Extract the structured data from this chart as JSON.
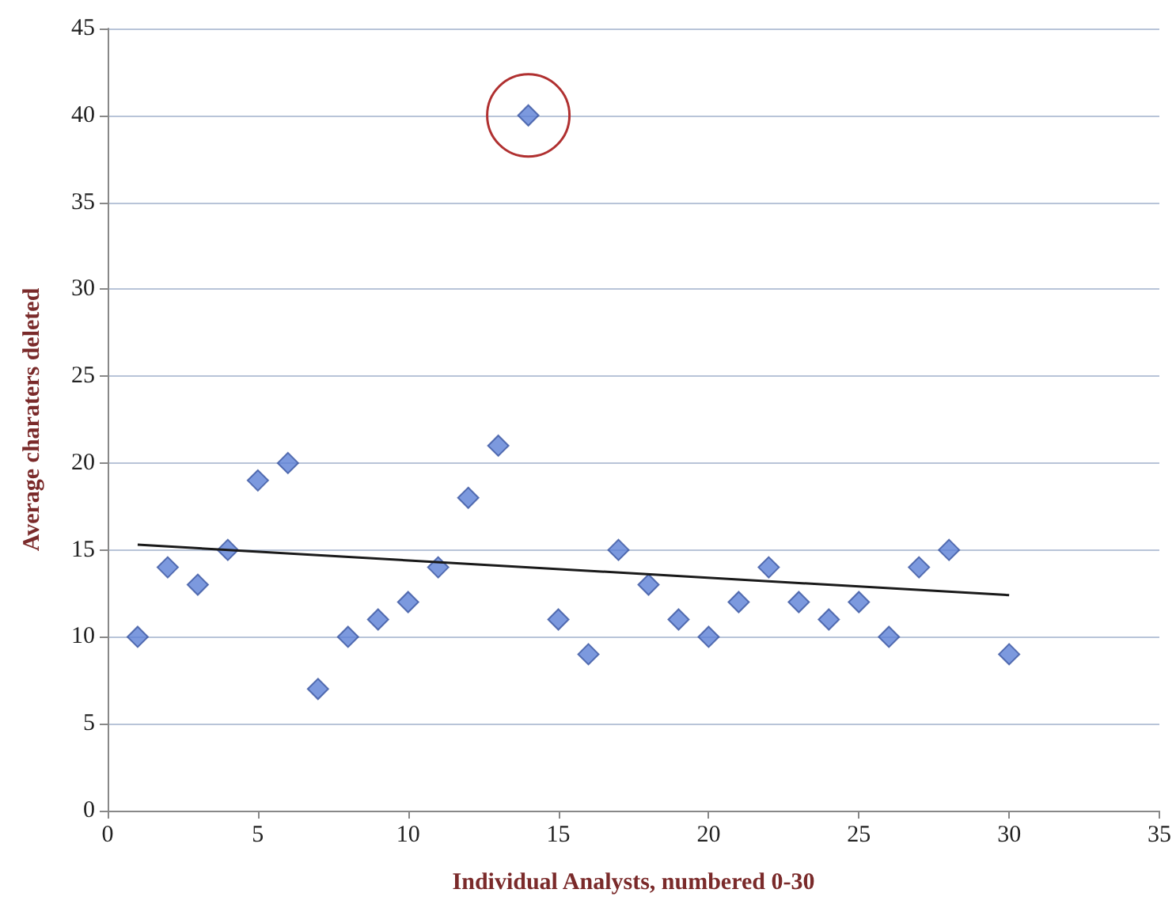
{
  "chart_data": {
    "type": "scatter",
    "xlabel": "Individual Analysts, numbered 0-30",
    "ylabel": "Average charaters deleted",
    "xlim": [
      0,
      35
    ],
    "xticks": [
      0,
      5,
      10,
      15,
      20,
      25,
      30,
      35
    ],
    "ylim": [
      0,
      45
    ],
    "yticks": [
      0,
      5,
      10,
      15,
      20,
      25,
      30,
      35,
      40,
      45
    ],
    "grid": "y",
    "marker": "diamond",
    "series": [
      {
        "color": "#5b7fd6",
        "x": [
          1,
          2,
          3,
          4,
          5,
          6,
          7,
          8,
          9,
          10,
          11,
          12,
          13,
          14,
          15,
          16,
          17,
          18,
          19,
          20,
          21,
          22,
          23,
          24,
          25,
          26,
          27,
          28,
          30
        ],
        "values": [
          10,
          14,
          13,
          15,
          19,
          20,
          7,
          10,
          11,
          12,
          14,
          18,
          21,
          40,
          11,
          9,
          15,
          13,
          11,
          10,
          12,
          14,
          12,
          11,
          12,
          10,
          14,
          15,
          9
        ]
      },
      {
        "type": "line",
        "marker": "none",
        "color": "#1a1a1a",
        "x": [
          1,
          30
        ],
        "values": [
          15.3,
          12.4
        ]
      }
    ]
  }
}
